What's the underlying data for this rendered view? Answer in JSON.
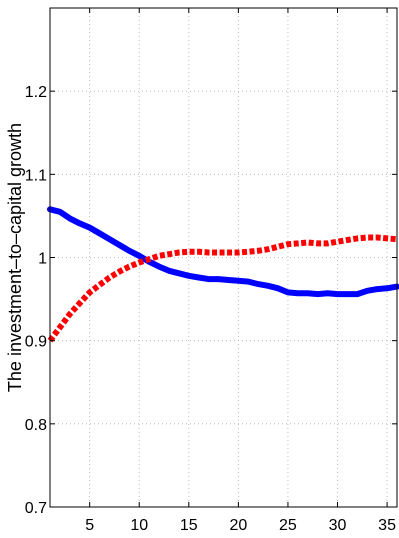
{
  "chart_data": {
    "type": "line",
    "title": "",
    "xlabel": "",
    "ylabel": "The investment–to–capital growth",
    "xlim": [
      1,
      36
    ],
    "ylim": [
      0.7,
      1.3
    ],
    "xticks": [
      5,
      10,
      15,
      20,
      25,
      30,
      35
    ],
    "yticks": [
      0.7,
      0.8,
      0.9,
      1,
      1.1,
      1.2
    ],
    "ytick_labels": [
      "0.7",
      "0.8",
      "0.9",
      "1",
      "1.1",
      "1.2"
    ],
    "grid": true,
    "legend": "none",
    "series": [
      {
        "color": "#0000ff",
        "style": "solid",
        "x": [
          1,
          2,
          3,
          4,
          5,
          6,
          7,
          8,
          9,
          10,
          11,
          12,
          13,
          14,
          15,
          16,
          17,
          18,
          19,
          20,
          21,
          22,
          23,
          24,
          25,
          26,
          27,
          28,
          29,
          30,
          31,
          32,
          33,
          34,
          35,
          36
        ],
        "values": [
          1.058,
          1.055,
          1.047,
          1.041,
          1.036,
          1.029,
          1.022,
          1.015,
          1.008,
          1.002,
          0.995,
          0.989,
          0.984,
          0.981,
          0.978,
          0.976,
          0.974,
          0.974,
          0.973,
          0.972,
          0.971,
          0.968,
          0.966,
          0.963,
          0.958,
          0.957,
          0.957,
          0.956,
          0.957,
          0.956,
          0.956,
          0.956,
          0.96,
          0.962,
          0.963,
          0.965
        ]
      },
      {
        "color": "#ff0000",
        "style": "dotted",
        "x": [
          1,
          2,
          3,
          4,
          5,
          6,
          7,
          8,
          9,
          10,
          11,
          12,
          13,
          14,
          15,
          16,
          17,
          18,
          19,
          20,
          21,
          22,
          23,
          24,
          25,
          26,
          27,
          28,
          29,
          30,
          31,
          32,
          33,
          34,
          35,
          36
        ],
        "values": [
          0.9,
          0.916,
          0.932,
          0.945,
          0.958,
          0.967,
          0.976,
          0.983,
          0.989,
          0.994,
          0.998,
          1.002,
          1.004,
          1.006,
          1.007,
          1.007,
          1.006,
          1.006,
          1.006,
          1.006,
          1.007,
          1.008,
          1.01,
          1.013,
          1.016,
          1.017,
          1.018,
          1.017,
          1.017,
          1.019,
          1.021,
          1.023,
          1.024,
          1.024,
          1.023,
          1.022
        ]
      }
    ]
  }
}
